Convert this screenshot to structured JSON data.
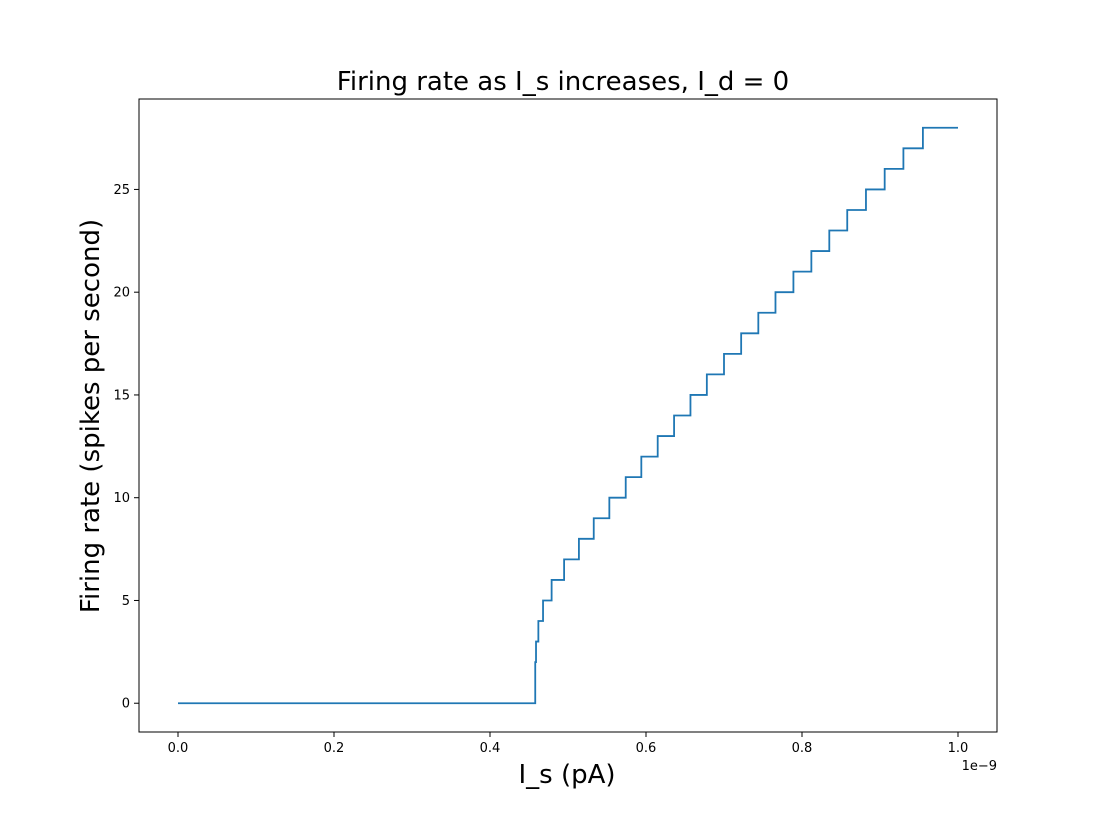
{
  "chart_data": {
    "type": "line",
    "title": "Firing rate as I_s increases, I_d = 0",
    "xlabel": "I_s (pA)",
    "ylabel": "Firing rate (spikes per second)",
    "x_offset_label": "1e−9",
    "xlim": [
      -0.05,
      1.05
    ],
    "ylim": [
      -1.4,
      29.4
    ],
    "x_ticks": [
      0.0,
      0.2,
      0.4,
      0.6,
      0.8,
      1.0
    ],
    "x_tick_labels": [
      "0.0",
      "0.2",
      "0.4",
      "0.6",
      "0.8",
      "1.0"
    ],
    "y_ticks": [
      0,
      5,
      10,
      15,
      20,
      25
    ],
    "y_tick_labels": [
      "0",
      "5",
      "10",
      "15",
      "20",
      "25"
    ],
    "grid": false,
    "color": "#1f77b4",
    "series": [
      {
        "name": "",
        "x": [
          0.0,
          0.457,
          0.458,
          0.459,
          0.462,
          0.468,
          0.479,
          0.495,
          0.514,
          0.533,
          0.553,
          0.574,
          0.594,
          0.615,
          0.636,
          0.657,
          0.678,
          0.7,
          0.722,
          0.744,
          0.766,
          0.789,
          0.812,
          0.835,
          0.858,
          0.882,
          0.906,
          0.93,
          0.955,
          0.979,
          1.0
        ],
        "y": [
          0,
          0,
          2,
          3,
          4,
          5,
          6,
          7,
          8,
          9,
          10,
          11,
          12,
          13,
          14,
          15,
          16,
          17,
          18,
          19,
          20,
          21,
          22,
          23,
          24,
          25,
          26,
          27,
          28,
          28,
          28
        ]
      }
    ]
  }
}
